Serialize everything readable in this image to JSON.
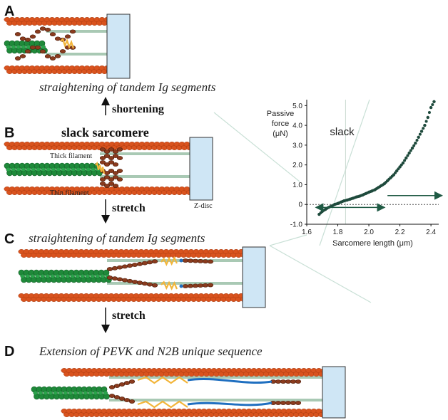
{
  "panels": {
    "A": {
      "letter": "A",
      "caption": "straightening of tandem Ig segments"
    },
    "B": {
      "letter": "B",
      "title": "slack sarcomere",
      "thick_label": "Thick filament",
      "thin_label": "Thin filament",
      "zdisc_label": "Z-disc"
    },
    "C": {
      "letter": "C",
      "caption": "straightening of tandem Ig segments"
    },
    "D": {
      "letter": "D",
      "caption": "Extension of PEVK and N2B unique sequence"
    }
  },
  "arrows": {
    "shortening": "shortening",
    "stretch1": "stretch",
    "stretch2": "stretch"
  },
  "colors": {
    "thin_filament": "#d9531e",
    "thick_filament": "#1f8a3a",
    "titin_ig": "#8a3b1e",
    "pevk": "#f2b53a",
    "n2b": "#1f6fc0",
    "zdisc": "#cfe6f5",
    "titin_line": "#a9c9b4",
    "data_points": "#1e4a3c"
  },
  "chart_data": {
    "type": "scatter",
    "title": "",
    "xlabel": "Sarcomere length (μm)",
    "ylabel": "Passive force (μN)",
    "ylabel_lines": [
      "Passive",
      "force",
      "(μN)"
    ],
    "annotation": "slack",
    "xlim": [
      1.6,
      2.45
    ],
    "ylim": [
      -1.0,
      5.3
    ],
    "x_ticks": [
      1.6,
      1.8,
      2.0,
      2.2,
      2.4
    ],
    "x_tick_labels": [
      "1.6",
      "1.8",
      "2.0",
      "2.2",
      "2.4"
    ],
    "y_ticks": [
      -1.0,
      0,
      1.0,
      2.0,
      3.0,
      4.0,
      5.0
    ],
    "y_tick_labels": [
      "-1.0",
      "0",
      "1.0",
      "2.0",
      "3.0",
      "4.0",
      "5.0"
    ],
    "slack_length": 1.85,
    "series": [
      {
        "x": [
          1.68,
          1.7,
          1.72,
          1.74,
          1.76,
          1.78,
          1.8,
          1.82,
          1.84,
          1.86,
          1.88,
          1.9,
          1.92,
          1.94,
          1.96,
          1.98,
          2.0,
          2.02,
          2.04,
          2.06,
          2.08,
          2.1,
          2.12,
          2.14,
          2.16,
          2.18,
          2.2,
          2.22,
          2.24,
          2.26,
          2.28,
          2.3,
          2.32,
          2.34,
          2.36,
          2.38,
          2.4,
          2.42
        ],
        "y": [
          -0.5,
          -0.35,
          -0.25,
          -0.15,
          -0.08,
          0.0,
          0.05,
          0.12,
          0.18,
          0.22,
          0.27,
          0.32,
          0.38,
          0.42,
          0.48,
          0.55,
          0.62,
          0.68,
          0.75,
          0.85,
          0.95,
          1.05,
          1.2,
          1.35,
          1.5,
          1.7,
          1.9,
          2.1,
          2.35,
          2.6,
          2.85,
          3.1,
          3.4,
          3.7,
          4.0,
          4.4,
          4.9,
          5.2
        ]
      }
    ]
  }
}
